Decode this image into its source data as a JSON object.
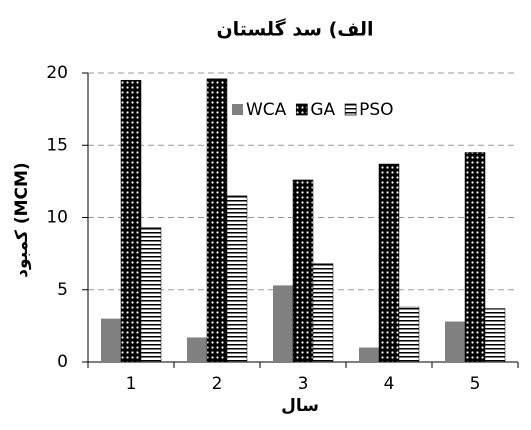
{
  "chart_data": {
    "type": "bar",
    "title": "الف) سد گلستان",
    "x_label": "سال",
    "y_label": "كمبود (MCM)",
    "categories": [
      "1",
      "2",
      "3",
      "4",
      "5"
    ],
    "series": [
      {
        "name": "WCA",
        "color": "#808080",
        "pattern": "solid",
        "values": [
          3.0,
          1.7,
          5.3,
          1.0,
          2.8
        ]
      },
      {
        "name": "GA",
        "color": "#000000",
        "pattern": "dots",
        "values": [
          19.5,
          19.6,
          12.6,
          13.7,
          14.5
        ]
      },
      {
        "name": "PSO",
        "color": "#000000",
        "pattern": "hlines",
        "values": [
          9.3,
          11.5,
          6.8,
          3.8,
          3.7
        ]
      }
    ],
    "ylim": [
      0,
      20
    ],
    "yticks": [
      0,
      5,
      10,
      15,
      20
    ],
    "grid": true,
    "legend": "top"
  }
}
